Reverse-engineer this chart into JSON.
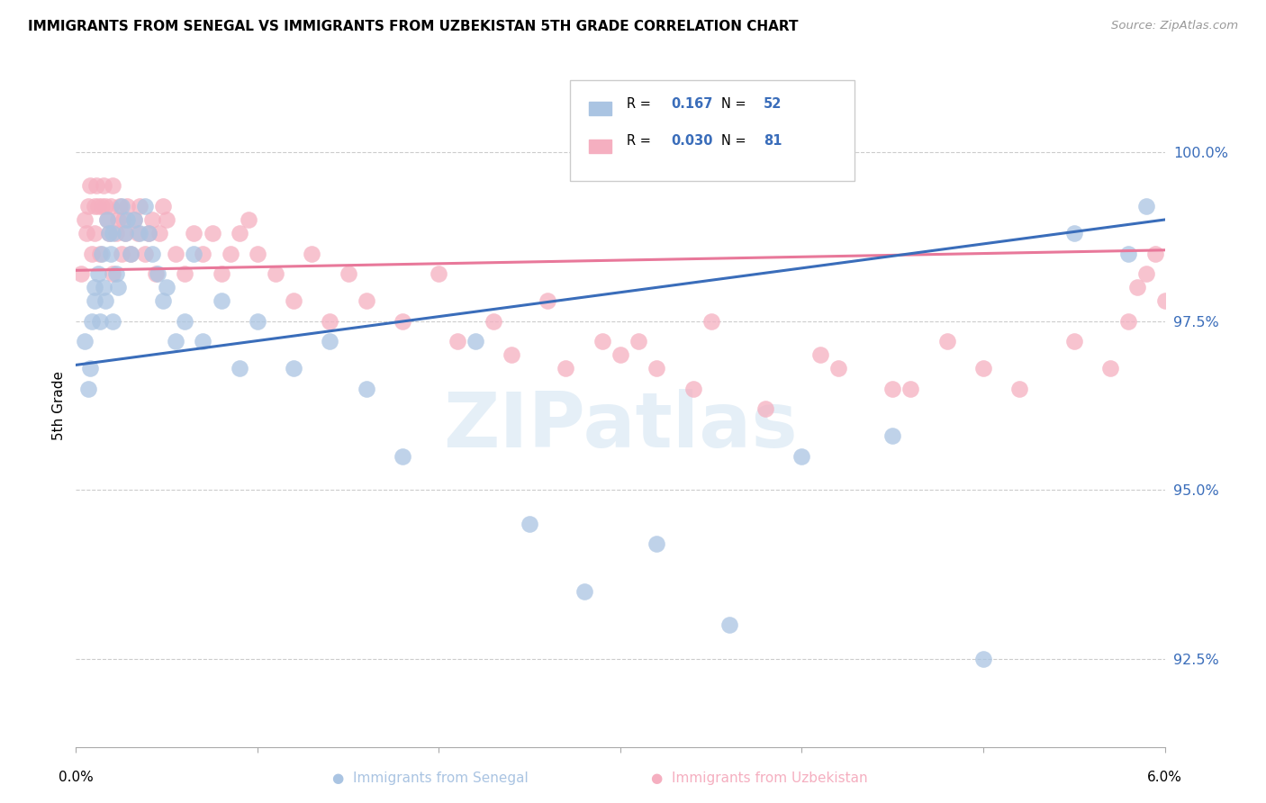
{
  "title": "IMMIGRANTS FROM SENEGAL VS IMMIGRANTS FROM UZBEKISTAN 5TH GRADE CORRELATION CHART",
  "source": "Source: ZipAtlas.com",
  "ylabel": "5th Grade",
  "ytick_labels": [
    "100.0%",
    "97.5%",
    "95.0%",
    "92.5%"
  ],
  "ytick_values": [
    100.0,
    97.5,
    95.0,
    92.5
  ],
  "xlim": [
    0.0,
    6.0
  ],
  "ylim": [
    91.2,
    101.3
  ],
  "legend_blue_r": "0.167",
  "legend_blue_n": "52",
  "legend_pink_r": "0.030",
  "legend_pink_n": "81",
  "color_blue": "#aac4e2",
  "color_pink": "#f5afc0",
  "color_trendline_blue": "#3a6dba",
  "color_trendline_pink": "#e8789a",
  "trendline_blue_x0": 0.0,
  "trendline_blue_y0": 96.85,
  "trendline_blue_x1": 6.0,
  "trendline_blue_y1": 99.0,
  "trendline_pink_x0": 0.0,
  "trendline_pink_y0": 98.25,
  "trendline_pink_x1": 6.0,
  "trendline_pink_y1": 98.55,
  "senegal_x": [
    0.05,
    0.07,
    0.08,
    0.09,
    0.1,
    0.1,
    0.12,
    0.13,
    0.14,
    0.15,
    0.16,
    0.17,
    0.18,
    0.19,
    0.2,
    0.2,
    0.22,
    0.23,
    0.25,
    0.27,
    0.28,
    0.3,
    0.32,
    0.35,
    0.38,
    0.4,
    0.42,
    0.45,
    0.48,
    0.5,
    0.55,
    0.6,
    0.65,
    0.7,
    0.8,
    0.9,
    1.0,
    1.2,
    1.4,
    1.6,
    1.8,
    2.2,
    2.5,
    2.8,
    3.2,
    3.6,
    4.0,
    4.5,
    5.0,
    5.5,
    5.8,
    5.9
  ],
  "senegal_y": [
    97.2,
    96.5,
    96.8,
    97.5,
    97.8,
    98.0,
    98.2,
    97.5,
    98.5,
    98.0,
    97.8,
    99.0,
    98.8,
    98.5,
    97.5,
    98.8,
    98.2,
    98.0,
    99.2,
    98.8,
    99.0,
    98.5,
    99.0,
    98.8,
    99.2,
    98.8,
    98.5,
    98.2,
    97.8,
    98.0,
    97.2,
    97.5,
    98.5,
    97.2,
    97.8,
    96.8,
    97.5,
    96.8,
    97.2,
    96.5,
    95.5,
    97.2,
    94.5,
    93.5,
    94.2,
    93.0,
    95.5,
    95.8,
    92.5,
    98.8,
    98.5,
    99.2
  ],
  "uzbekistan_x": [
    0.03,
    0.05,
    0.06,
    0.07,
    0.08,
    0.09,
    0.1,
    0.1,
    0.11,
    0.12,
    0.13,
    0.14,
    0.15,
    0.16,
    0.17,
    0.18,
    0.19,
    0.2,
    0.2,
    0.22,
    0.23,
    0.24,
    0.25,
    0.26,
    0.27,
    0.28,
    0.3,
    0.32,
    0.34,
    0.35,
    0.38,
    0.4,
    0.42,
    0.44,
    0.46,
    0.48,
    0.5,
    0.55,
    0.6,
    0.65,
    0.7,
    0.75,
    0.8,
    0.85,
    0.9,
    0.95,
    1.0,
    1.1,
    1.2,
    1.3,
    1.4,
    1.5,
    1.6,
    1.8,
    2.0,
    2.3,
    2.6,
    2.9,
    3.2,
    3.5,
    3.8,
    4.1,
    4.5,
    4.8,
    5.0,
    5.2,
    5.5,
    5.7,
    5.8,
    5.85,
    5.9,
    5.95,
    6.0,
    4.2,
    4.6,
    3.0,
    3.4,
    2.1,
    2.4,
    2.7,
    3.1
  ],
  "uzbekistan_y": [
    98.2,
    99.0,
    98.8,
    99.2,
    99.5,
    98.5,
    98.8,
    99.2,
    99.5,
    99.2,
    98.5,
    99.2,
    99.5,
    99.2,
    99.0,
    98.8,
    99.2,
    99.5,
    98.2,
    98.8,
    99.0,
    99.2,
    98.5,
    99.0,
    98.8,
    99.2,
    98.5,
    99.0,
    98.8,
    99.2,
    98.5,
    98.8,
    99.0,
    98.2,
    98.8,
    99.2,
    99.0,
    98.5,
    98.2,
    98.8,
    98.5,
    98.8,
    98.2,
    98.5,
    98.8,
    99.0,
    98.5,
    98.2,
    97.8,
    98.5,
    97.5,
    98.2,
    97.8,
    97.5,
    98.2,
    97.5,
    97.8,
    97.2,
    96.8,
    97.5,
    96.2,
    97.0,
    96.5,
    97.2,
    96.8,
    96.5,
    97.2,
    96.8,
    97.5,
    98.0,
    98.2,
    98.5,
    97.8,
    96.8,
    96.5,
    97.0,
    96.5,
    97.2,
    97.0,
    96.8,
    97.2
  ]
}
